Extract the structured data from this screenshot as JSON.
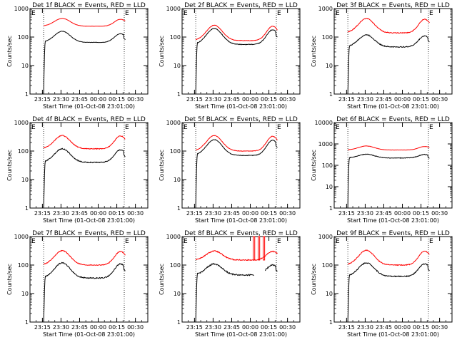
{
  "figure": {
    "ylabel": "Counts/sec",
    "xlabel": "Start Time (01-Oct-08 23:01:00)",
    "x_ticks": [
      "23:15",
      "23:30",
      "23:45",
      "00:00",
      "00:15",
      "00:30"
    ],
    "e_marker": "E"
  },
  "chart_data": [
    {
      "type": "line",
      "title": "Det 1f BLACK = Events, RED = LLD",
      "xlabel": "Start Time (01-Oct-08 23:01:00)",
      "ylabel": "Counts/sec",
      "y_scale": "log",
      "ylim": [
        1,
        1000
      ],
      "y_ticks": [
        "1",
        "10",
        "100",
        "1000"
      ],
      "x_ticks": [
        "23:15",
        "23:30",
        "23:45",
        "00:00",
        "00:15",
        "00:30"
      ],
      "vlines": [
        "23:16",
        "00:21"
      ],
      "series": [
        {
          "name": "Events",
          "color": "#000000",
          "baseline": 65,
          "peak1": 160,
          "peak2": 130,
          "noise": 0.015
        },
        {
          "name": "LLD",
          "color": "#ff0000",
          "baseline": 240,
          "peak1": 450,
          "peak2": 420,
          "noise": 0.008
        }
      ]
    },
    {
      "type": "line",
      "title": "Det 2f BLACK = Events, RED = LLD",
      "xlabel": "Start Time (01-Oct-08 23:01:00)",
      "ylabel": "Counts/sec",
      "y_scale": "log",
      "ylim": [
        1,
        1000
      ],
      "y_ticks": [
        "1",
        "10",
        "100",
        "1000"
      ],
      "x_ticks": [
        "23:15",
        "23:30",
        "23:45",
        "00:00",
        "00:15",
        "00:30"
      ],
      "vlines": [
        "23:16",
        "00:21"
      ],
      "series": [
        {
          "name": "Events",
          "color": "#000000",
          "baseline": 55,
          "peak1": 200,
          "peak2": 180,
          "noise": 0.025
        },
        {
          "name": "LLD",
          "color": "#ff0000",
          "baseline": 75,
          "peak1": 260,
          "peak2": 240,
          "noise": 0.02
        }
      ]
    },
    {
      "type": "line",
      "title": "Det 3f BLACK = Events, RED = LLD",
      "xlabel": "Start Time (01-Oct-08 23:01:00)",
      "ylabel": "Counts/sec",
      "y_scale": "log",
      "ylim": [
        1,
        1000
      ],
      "y_ticks": [
        "1",
        "10",
        "100",
        "1000"
      ],
      "x_ticks": [
        "23:15",
        "23:30",
        "23:45",
        "00:00",
        "00:15",
        "00:30"
      ],
      "vlines": [
        "23:16",
        "00:21"
      ],
      "series": [
        {
          "name": "Events",
          "color": "#000000",
          "baseline": 45,
          "peak1": 120,
          "peak2": 110,
          "noise": 0.035
        },
        {
          "name": "LLD",
          "color": "#ff0000",
          "baseline": 140,
          "peak1": 450,
          "peak2": 420,
          "noise": 0.03
        }
      ]
    },
    {
      "type": "line",
      "title": "Det 4f BLACK = Events, RED = LLD",
      "xlabel": "Start Time (01-Oct-08 23:01:00)",
      "ylabel": "Counts/sec",
      "y_scale": "log",
      "ylim": [
        1,
        1000
      ],
      "y_ticks": [
        "1",
        "10",
        "100",
        "1000"
      ],
      "x_ticks": [
        "23:15",
        "23:30",
        "23:45",
        "00:00",
        "00:15",
        "00:30"
      ],
      "vlines": [
        "23:16",
        "00:21"
      ],
      "series": [
        {
          "name": "Events",
          "color": "#000000",
          "baseline": 40,
          "peak1": 120,
          "peak2": 110,
          "noise": 0.035
        },
        {
          "name": "LLD",
          "color": "#ff0000",
          "baseline": 120,
          "peak1": 350,
          "peak2": 340,
          "noise": 0.03
        }
      ]
    },
    {
      "type": "line",
      "title": "Det 5f BLACK = Events, RED = LLD",
      "xlabel": "Start Time (01-Oct-08 23:01:00)",
      "ylabel": "Counts/sec",
      "y_scale": "log",
      "ylim": [
        1,
        1000
      ],
      "y_ticks": [
        "1",
        "10",
        "100",
        "1000"
      ],
      "x_ticks": [
        "23:15",
        "23:30",
        "23:45",
        "00:00",
        "00:15",
        "00:30"
      ],
      "vlines": [
        "23:16",
        "00:21"
      ],
      "series": [
        {
          "name": "Events",
          "color": "#000000",
          "baseline": 70,
          "peak1": 250,
          "peak2": 240,
          "noise": 0.02
        },
        {
          "name": "LLD",
          "color": "#ff0000",
          "baseline": 100,
          "peak1": 350,
          "peak2": 330,
          "noise": 0.02
        }
      ]
    },
    {
      "type": "line",
      "title": "Det 6f BLACK = Events, RED = LLD",
      "xlabel": "Start Time (01-Oct-08 23:01:00)",
      "ylabel": "Counts/sec",
      "y_scale": "log",
      "ylim": [
        1,
        10000
      ],
      "y_ticks": [
        "1",
        "10",
        "100",
        "1000",
        "10000"
      ],
      "x_ticks": [
        "23:15",
        "23:30",
        "23:45",
        "00:00",
        "00:15",
        "00:30"
      ],
      "vlines": [
        "23:16",
        "00:21"
      ],
      "series": [
        {
          "name": "Events",
          "color": "#000000",
          "baseline": 220,
          "peak1": 330,
          "peak2": 320,
          "noise": 0.03
        },
        {
          "name": "LLD",
          "color": "#ff0000",
          "baseline": 520,
          "peak1": 800,
          "peak2": 760,
          "noise": 0.01
        }
      ]
    },
    {
      "type": "line",
      "title": "Det 7f BLACK = Events, RED = LLD",
      "xlabel": "Start Time (01-Oct-08 23:01:00)",
      "ylabel": "Counts/sec",
      "y_scale": "log",
      "ylim": [
        1,
        1000
      ],
      "y_ticks": [
        "1",
        "10",
        "100",
        "1000"
      ],
      "x_ticks": [
        "23:15",
        "23:30",
        "23:45",
        "00:00",
        "00:15",
        "00:30"
      ],
      "vlines": [
        "23:16",
        "00:21"
      ],
      "series": [
        {
          "name": "Events",
          "color": "#000000",
          "baseline": 35,
          "peak1": 120,
          "peak2": 110,
          "noise": 0.04
        },
        {
          "name": "LLD",
          "color": "#ff0000",
          "baseline": 100,
          "peak1": 320,
          "peak2": 300,
          "noise": 0.03
        }
      ]
    },
    {
      "type": "line",
      "title": "Det 8f BLACK = Events, RED = LLD",
      "xlabel": "Start Time (01-Oct-08 23:01:00)",
      "ylabel": "Counts/sec",
      "y_scale": "log",
      "ylim": [
        1,
        1000
      ],
      "y_ticks": [
        "1",
        "10",
        "100",
        "1000"
      ],
      "x_ticks": [
        "23:15",
        "23:30",
        "23:45",
        "00:00",
        "00:15",
        "00:30"
      ],
      "vlines": [
        "23:16",
        "00:21"
      ],
      "series": [
        {
          "name": "Events",
          "color": "#000000",
          "baseline": 45,
          "peak1": 110,
          "peak2": 100,
          "noise": 0.05,
          "gap": [
            "00:03",
            "00:12"
          ]
        },
        {
          "name": "LLD",
          "color": "#ff0000",
          "baseline": 150,
          "peak1": 310,
          "peak2": 300,
          "noise": 0.04,
          "spikes": [
            {
              "x": "00:03",
              "y": 1000
            },
            {
              "x": "00:07",
              "y": 1000
            },
            {
              "x": "00:11",
              "y": 1000
            }
          ]
        }
      ]
    },
    {
      "type": "line",
      "title": "Det 9f BLACK = Events, RED = LLD",
      "xlabel": "Start Time (01-Oct-08 23:01:00)",
      "ylabel": "Counts/sec",
      "y_scale": "log",
      "ylim": [
        1,
        1000
      ],
      "y_ticks": [
        "1",
        "10",
        "100",
        "1000"
      ],
      "x_ticks": [
        "23:15",
        "23:30",
        "23:45",
        "00:00",
        "00:15",
        "00:30"
      ],
      "vlines": [
        "23:16",
        "00:21"
      ],
      "series": [
        {
          "name": "Events",
          "color": "#000000",
          "baseline": 40,
          "peak1": 120,
          "peak2": 110,
          "noise": 0.04
        },
        {
          "name": "LLD",
          "color": "#ff0000",
          "baseline": 100,
          "peak1": 330,
          "peak2": 310,
          "noise": 0.03
        }
      ]
    }
  ]
}
